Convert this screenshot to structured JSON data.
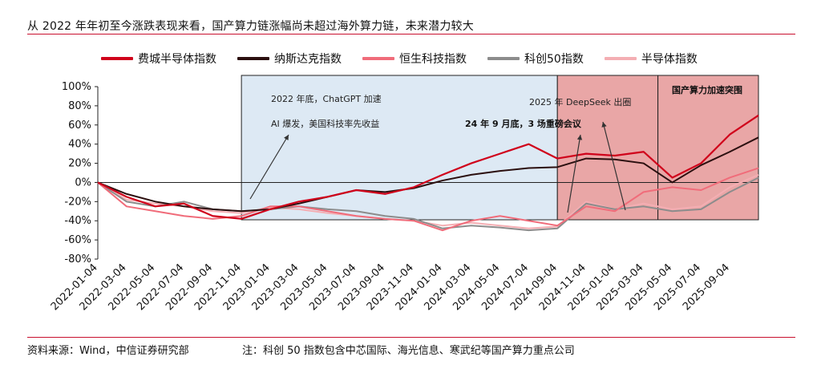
{
  "header": {
    "title": "从 2022 年年初至今涨跌表现来看，国产算力链涨幅尚未超过海外算力链，未来潜力较大"
  },
  "footer": {
    "source": "资料来源：Wind，中信证券研究部",
    "note": "注：科创 50 指数包含中芯国际、海光信息、寒武纪等国产算力重点公司"
  },
  "chart_data": {
    "type": "line",
    "ylim": [
      -80,
      100
    ],
    "yticks": [
      "100%",
      "80%",
      "60%",
      "40%",
      "20%",
      "0%",
      "-20%",
      "-40%",
      "-60%",
      "-80%"
    ],
    "x_ticks": [
      "2022-01-04",
      "2022-03-04",
      "2022-05-04",
      "2022-07-04",
      "2022-09-04",
      "2022-11-04",
      "2023-01-04",
      "2023-03-04",
      "2023-05-04",
      "2023-07-04",
      "2023-09-04",
      "2023-11-04",
      "2024-01-04",
      "2024-03-04",
      "2024-05-04",
      "2024-07-04",
      "2024-09-04",
      "2024-11-04",
      "2025-01-04",
      "2025-03-04",
      "2025-05-04",
      "2025-07-04",
      "2025-09-04"
    ],
    "x": [
      "2022-01-04",
      "2022-03-04",
      "2022-05-04",
      "2022-07-04",
      "2022-09-04",
      "2022-11-04",
      "2023-01-04",
      "2023-03-04",
      "2023-05-04",
      "2023-07-04",
      "2023-09-04",
      "2023-11-04",
      "2024-01-04",
      "2024-03-04",
      "2024-05-04",
      "2024-07-04",
      "2024-09-04",
      "2024-11-04",
      "2025-01-04",
      "2025-03-04",
      "2025-05-04",
      "2025-07-04",
      "2025-09-04",
      "2025-10-20"
    ],
    "series": [
      {
        "name": "费城半导体指数",
        "color": "#d0021b",
        "width": 2.2,
        "values": [
          0,
          -15,
          -25,
          -22,
          -35,
          -38,
          -28,
          -20,
          -15,
          -8,
          -12,
          -5,
          8,
          20,
          30,
          40,
          25,
          30,
          28,
          32,
          5,
          20,
          50,
          70
        ]
      },
      {
        "name": "纳斯达克指数",
        "color": "#2b0f0f",
        "width": 2,
        "values": [
          0,
          -12,
          -20,
          -25,
          -28,
          -30,
          -28,
          -22,
          -15,
          -8,
          -10,
          -6,
          2,
          8,
          12,
          15,
          16,
          25,
          24,
          20,
          0,
          18,
          32,
          47
        ]
      },
      {
        "name": "恒生科技指数",
        "color": "#f06c7a",
        "width": 2,
        "values": [
          0,
          -25,
          -30,
          -35,
          -38,
          -35,
          -25,
          -25,
          -30,
          -35,
          -38,
          -40,
          -50,
          -40,
          -35,
          -40,
          -45,
          -25,
          -30,
          -10,
          -5,
          -8,
          5,
          15
        ]
      },
      {
        "name": "科创50指数",
        "color": "#8c8c8c",
        "width": 2,
        "values": [
          0,
          -20,
          -25,
          -20,
          -28,
          -30,
          -28,
          -25,
          -28,
          -30,
          -35,
          -38,
          -48,
          -45,
          -47,
          -50,
          -48,
          -22,
          -28,
          -25,
          -30,
          -28,
          -10,
          5
        ]
      },
      {
        "name": "半导体指数",
        "color": "#f4aeb3",
        "width": 2,
        "values": [
          0,
          -18,
          -22,
          -25,
          -30,
          -32,
          -26,
          -28,
          -32,
          -35,
          -38,
          -40,
          -45,
          -42,
          -45,
          -48,
          -46,
          -20,
          -28,
          -22,
          -28,
          -25,
          -5,
          8
        ]
      }
    ],
    "annotations": [
      {
        "text": "2022 年底，ChatGPT 加速",
        "bold": false
      },
      {
        "text": "AI 爆发，美国科技率先收益",
        "bold": false
      },
      {
        "text": "2025 年 DeepSeek 出圈",
        "bold": false
      },
      {
        "text": "24 年 9 月底，3 场重磅会议",
        "bold": true
      },
      {
        "text": "国产算力加速突围",
        "bold": true
      }
    ],
    "regions": [
      {
        "from_index": 5,
        "to_index": 16,
        "fill": "#dde9f4"
      },
      {
        "from_index": 16,
        "to_index": 19.5,
        "fill": "#e9a6a6"
      },
      {
        "from_index": 19.5,
        "to_index": 23,
        "fill": "#e9a6a6"
      }
    ],
    "grid": false,
    "legend_position": "top"
  }
}
